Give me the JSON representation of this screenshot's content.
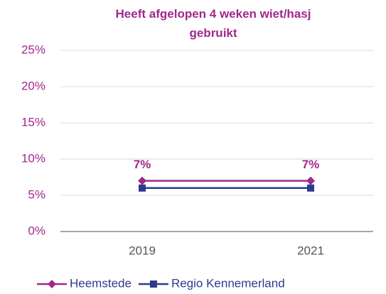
{
  "chart_data": {
    "type": "line",
    "title": "Heeft afgelopen 4 weken wiet/hasj gebruikt",
    "categories": [
      "2019",
      "2021"
    ],
    "series": [
      {
        "name": "Heemstede",
        "color": "#a0288c",
        "marker": "diamond",
        "values": [
          7,
          7
        ],
        "value_labels": [
          "7%",
          "7%"
        ]
      },
      {
        "name": "Regio Kennemerland",
        "color": "#2e3a8c",
        "marker": "square",
        "values": [
          6,
          6
        ]
      }
    ],
    "ylim": [
      0,
      25
    ],
    "yticks": [
      {
        "value": 0,
        "label": "0%"
      },
      {
        "value": 5,
        "label": "5%"
      },
      {
        "value": 10,
        "label": "10%"
      },
      {
        "value": 15,
        "label": "15%"
      },
      {
        "value": 20,
        "label": "20%"
      },
      {
        "value": 25,
        "label": "25%"
      }
    ],
    "grid": true,
    "legend": "bottom"
  }
}
